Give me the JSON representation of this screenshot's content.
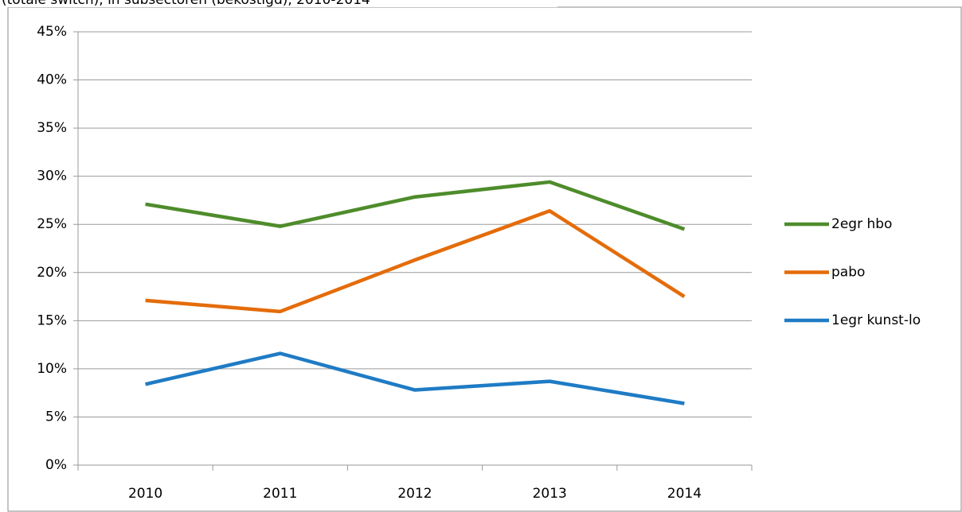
{
  "chart_data": {
    "type": "line",
    "title": "(totale switch),  in subsectoren (bekostigd), 2010-2014",
    "categories": [
      "2010",
      "2011",
      "2012",
      "2013",
      "2014"
    ],
    "series": [
      {
        "name": "2egr hbo",
        "color": "#4e8c2b",
        "values": [
          27.1,
          24.8,
          27.85,
          29.4,
          24.5
        ]
      },
      {
        "name": "pabo",
        "color": "#e46c0a",
        "values": [
          17.1,
          15.95,
          21.3,
          26.4,
          17.5
        ]
      },
      {
        "name": "1egr kunst-lo",
        "color": "#1f7bc4",
        "values": [
          8.4,
          11.6,
          7.8,
          8.7,
          6.4
        ]
      }
    ],
    "ylim": [
      0,
      45
    ],
    "yticks": [
      {
        "value": 0,
        "label": "0%"
      },
      {
        "value": 5,
        "label": "5%"
      },
      {
        "value": 10,
        "label": "10%"
      },
      {
        "value": 15,
        "label": "15%"
      },
      {
        "value": 20,
        "label": "20%"
      },
      {
        "value": 25,
        "label": "25%"
      },
      {
        "value": 30,
        "label": "30%"
      },
      {
        "value": 35,
        "label": "35%"
      },
      {
        "value": 40,
        "label": "40%"
      },
      {
        "value": 45,
        "label": "45%"
      }
    ],
    "grid": true,
    "legend": "right"
  }
}
